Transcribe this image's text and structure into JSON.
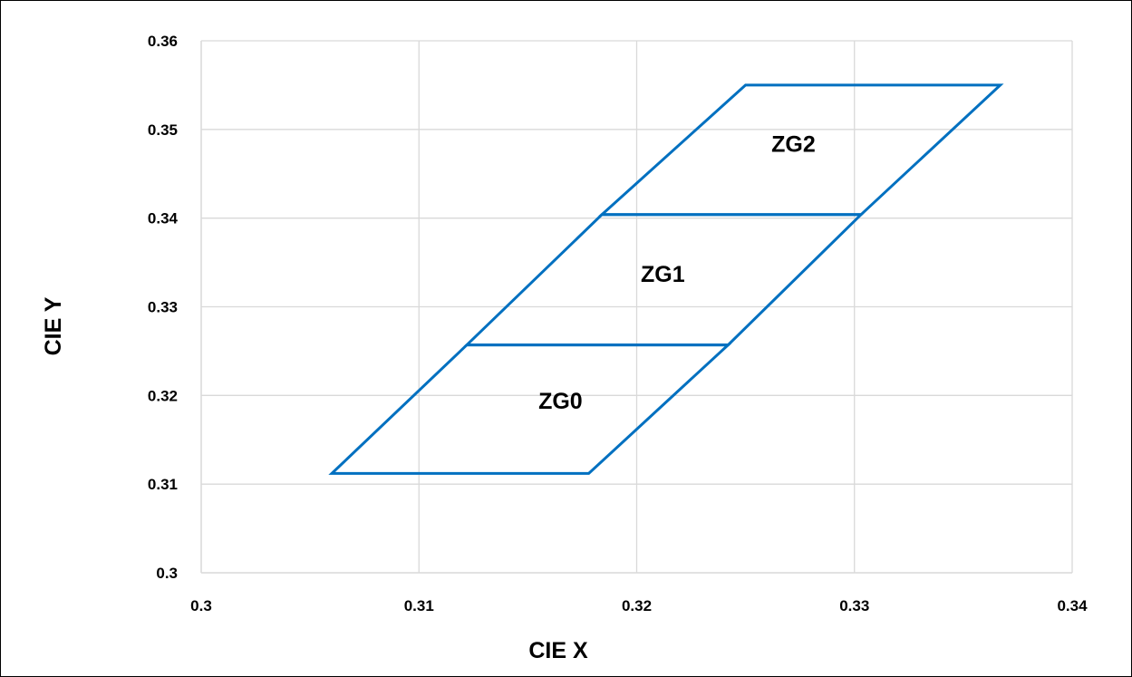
{
  "chart_data": {
    "type": "scatter",
    "xlabel": "CIE X",
    "ylabel": "CIE Y",
    "xlim": [
      0.3,
      0.34
    ],
    "ylim": [
      0.3,
      0.36
    ],
    "x_ticks": [
      "0.3",
      "0.31",
      "0.32",
      "0.33",
      "0.34"
    ],
    "y_ticks": [
      "0.3",
      "0.31",
      "0.32",
      "0.33",
      "0.34",
      "0.35",
      "0.36"
    ],
    "grid": true,
    "line_color": "#0070C0",
    "grid_color": "#D9D9D9",
    "regions": [
      {
        "name": "ZG0",
        "polygon": [
          [
            0.306,
            0.3112
          ],
          [
            0.3178,
            0.3112
          ],
          [
            0.3242,
            0.3257
          ],
          [
            0.3122,
            0.3257
          ]
        ]
      },
      {
        "name": "ZG1",
        "polygon": [
          [
            0.3122,
            0.3257
          ],
          [
            0.3242,
            0.3257
          ],
          [
            0.3303,
            0.3404
          ],
          [
            0.3184,
            0.3404
          ]
        ]
      },
      {
        "name": "ZG2",
        "polygon": [
          [
            0.3184,
            0.3404
          ],
          [
            0.3303,
            0.3404
          ],
          [
            0.3367,
            0.355
          ],
          [
            0.325,
            0.355
          ]
        ]
      }
    ],
    "region_label_positions": [
      {
        "name": "ZG0",
        "x": 0.3165,
        "y": 0.3185
      },
      {
        "name": "ZG1",
        "x": 0.3212,
        "y": 0.3328
      },
      {
        "name": "ZG2",
        "x": 0.3272,
        "y": 0.3475
      }
    ]
  }
}
